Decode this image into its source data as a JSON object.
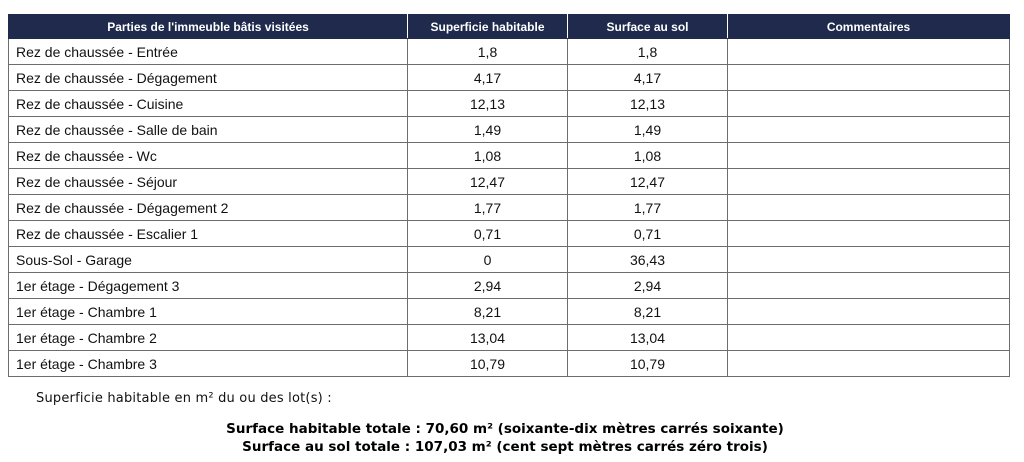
{
  "table": {
    "headers": [
      "Parties de l'immeuble bâtis visitées",
      "Superficie habitable",
      "Surface au sol",
      "Commentaires"
    ],
    "rows": [
      {
        "piece": "Rez de chaussée - Entrée",
        "habitable": "1,8",
        "sol": "1,8",
        "commentaire": ""
      },
      {
        "piece": "Rez de chaussée - Dégagement",
        "habitable": "4,17",
        "sol": "4,17",
        "commentaire": ""
      },
      {
        "piece": "Rez de chaussée - Cuisine",
        "habitable": "12,13",
        "sol": "12,13",
        "commentaire": ""
      },
      {
        "piece": "Rez de chaussée - Salle de bain",
        "habitable": "1,49",
        "sol": "1,49",
        "commentaire": ""
      },
      {
        "piece": "Rez de chaussée - Wc",
        "habitable": "1,08",
        "sol": "1,08",
        "commentaire": ""
      },
      {
        "piece": "Rez de chaussée - Séjour",
        "habitable": "12,47",
        "sol": "12,47",
        "commentaire": ""
      },
      {
        "piece": "Rez de chaussée - Dégagement 2",
        "habitable": "1,77",
        "sol": "1,77",
        "commentaire": ""
      },
      {
        "piece": "Rez de chaussée - Escalier 1",
        "habitable": "0,71",
        "sol": "0,71",
        "commentaire": ""
      },
      {
        "piece": "Sous-Sol - Garage",
        "habitable": "0",
        "sol": "36,43",
        "commentaire": ""
      },
      {
        "piece": "1er étage - Dégagement 3",
        "habitable": "2,94",
        "sol": "2,94",
        "commentaire": ""
      },
      {
        "piece": "1er étage - Chambre 1",
        "habitable": "8,21",
        "sol": "8,21",
        "commentaire": ""
      },
      {
        "piece": "1er étage - Chambre 2",
        "habitable": "13,04",
        "sol": "13,04",
        "commentaire": ""
      },
      {
        "piece": "1er étage - Chambre 3",
        "habitable": "10,79",
        "sol": "10,79",
        "commentaire": ""
      }
    ]
  },
  "summary": {
    "intro": "Superficie habitable en m² du ou des lot(s) :",
    "habitable_total": "Surface habitable totale : 70,60 m² (soixante-dix mètres carrés soixante)",
    "sol_total": "Surface au sol totale : 107,03 m² (cent sept mètres carrés zéro trois)"
  },
  "colors": {
    "header_bg": "#1f2a4d",
    "header_text": "#ffffff",
    "border": "#6d6d6d"
  }
}
